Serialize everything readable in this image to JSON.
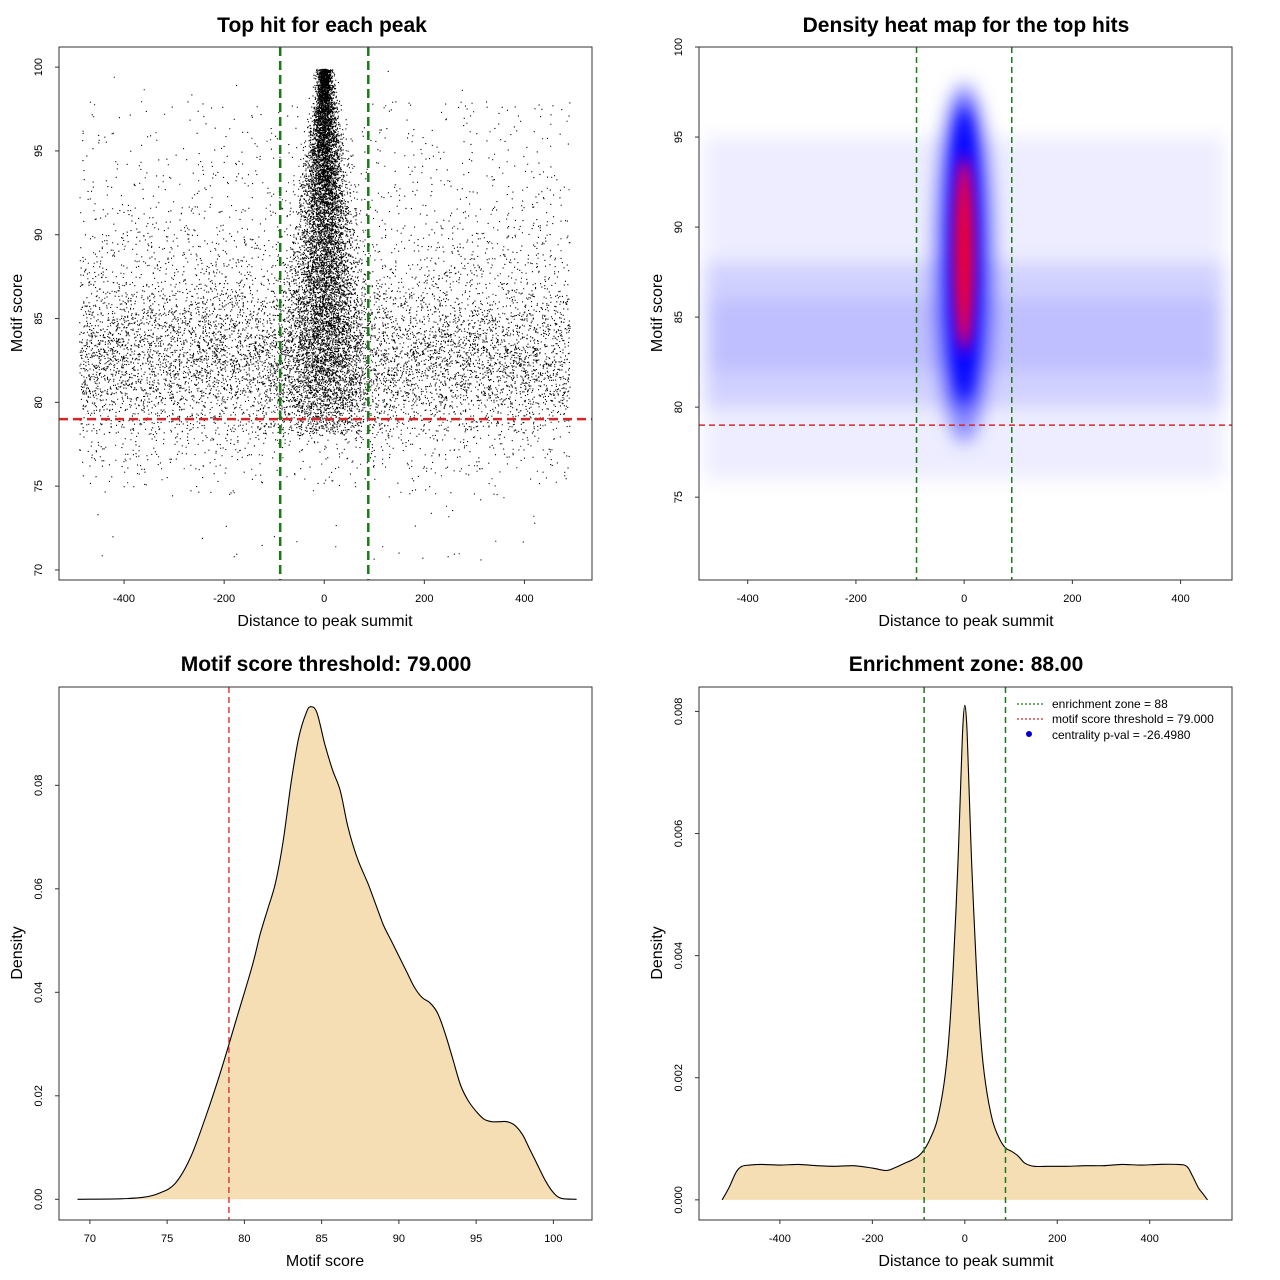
{
  "chart_data": [
    {
      "id": "scatter",
      "type": "scatter",
      "title": "Top hit for each peak",
      "xlabel": "Distance to peak summit",
      "ylabel": "Motif score",
      "xlim": [
        -530,
        535
      ],
      "ylim": [
        69.4,
        101.2
      ],
      "xticks": [
        -400,
        -200,
        0,
        200,
        400
      ],
      "yticks": [
        70,
        75,
        80,
        85,
        90,
        95,
        100
      ],
      "xtick_labels": [
        "-400",
        "-200",
        "0",
        "200",
        "400"
      ],
      "ytick_labels": [
        "70",
        "75",
        "80",
        "85",
        "90",
        "95",
        "100"
      ],
      "vlines": [
        -88,
        88
      ],
      "hline": 79,
      "point_color": "#000000",
      "vline_color": "#1a7a1a",
      "hline_color": "#d62728",
      "description_of_points": "many points; central column near x=0 spanning y 78-100, background band across x -490..490 concentrated around y 80-88"
    },
    {
      "id": "heatmap",
      "type": "heatmap",
      "title": "Density heat map for the top hits",
      "xlabel": "Distance to peak summit",
      "ylabel": "Motif score",
      "xlim": [
        -490,
        495
      ],
      "ylim": [
        70.4,
        100.0
      ],
      "xticks": [
        -400,
        -200,
        0,
        200,
        400
      ],
      "yticks": [
        75,
        80,
        85,
        90,
        95,
        100
      ],
      "xtick_labels": [
        "-400",
        "-200",
        "0",
        "200",
        "400"
      ],
      "ytick_labels": [
        "75",
        "80",
        "85",
        "90",
        "95",
        "100"
      ],
      "vlines": [
        -88,
        88
      ],
      "hline": 79,
      "colors": [
        "#ffffff",
        "#0000ff",
        "#ff0000"
      ],
      "vline_color": "#1a7a1a",
      "hline_color": "#d62728"
    },
    {
      "id": "score_density",
      "type": "area",
      "title": "Motif score threshold: 79.000",
      "xlabel": "Motif score",
      "ylabel": "Density",
      "xlim": [
        68.0,
        102.5
      ],
      "ylim": [
        -0.004,
        0.099
      ],
      "xticks": [
        70,
        75,
        80,
        85,
        90,
        95,
        100
      ],
      "yticks": [
        0.0,
        0.02,
        0.04,
        0.06,
        0.08
      ],
      "xtick_labels": [
        "70",
        "75",
        "80",
        "85",
        "90",
        "95",
        "100"
      ],
      "ytick_labels": [
        "0.00",
        "0.02",
        "0.04",
        "0.06",
        "0.08"
      ],
      "vline": 79,
      "fill": "#f5deb3",
      "line_color": "#000000",
      "vline_color": "#d62728",
      "x": [
        69.2,
        72,
        73.5,
        74.5,
        75.5,
        76.5,
        77.5,
        78.5,
        79.5,
        80.5,
        81,
        81.5,
        82,
        82.5,
        83,
        83.5,
        84,
        84.3,
        84.7,
        85.2,
        85.7,
        86.2,
        86.7,
        87.3,
        88,
        88.5,
        89,
        89.5,
        90,
        90.5,
        91,
        91.5,
        92,
        92.5,
        93,
        93.5,
        94,
        94.5,
        95,
        95.5,
        96,
        96.5,
        97,
        97.5,
        98,
        98.5,
        99,
        99.5,
        100,
        100.5,
        101.5
      ],
      "y": [
        0.0,
        0.0001,
        0.0004,
        0.0012,
        0.003,
        0.008,
        0.016,
        0.025,
        0.035,
        0.045,
        0.051,
        0.056,
        0.061,
        0.069,
        0.08,
        0.089,
        0.094,
        0.0952,
        0.094,
        0.088,
        0.083,
        0.079,
        0.072,
        0.066,
        0.061,
        0.057,
        0.053,
        0.05,
        0.047,
        0.044,
        0.041,
        0.039,
        0.038,
        0.036,
        0.032,
        0.027,
        0.022,
        0.019,
        0.017,
        0.0155,
        0.015,
        0.015,
        0.015,
        0.0143,
        0.0125,
        0.0095,
        0.0065,
        0.0035,
        0.0013,
        0.0002,
        0.0
      ]
    },
    {
      "id": "distance_density",
      "type": "area",
      "title": "Enrichment zone: 88.00",
      "xlabel": "Distance to peak summit",
      "ylabel": "Density",
      "xlim": [
        -575,
        578
      ],
      "ylim": [
        -0.00033,
        0.0084
      ],
      "xticks": [
        -400,
        -200,
        0,
        200,
        400
      ],
      "yticks": [
        0.0,
        0.002,
        0.004,
        0.006,
        0.008
      ],
      "xtick_labels": [
        "-400",
        "-200",
        "0",
        "200",
        "400"
      ],
      "ytick_labels": [
        "0.000",
        "0.002",
        "0.004",
        "0.006",
        "0.008"
      ],
      "vlines": [
        -88,
        88
      ],
      "fill": "#f5deb3",
      "line_color": "#000000",
      "vline_color": "#1a7a1a",
      "x": [
        -525,
        -510,
        -495,
        -482,
        -465,
        -440,
        -400,
        -360,
        -320,
        -280,
        -240,
        -200,
        -170,
        -150,
        -130,
        -115,
        -100,
        -88,
        -75,
        -60,
        -45,
        -35,
        -25,
        -15,
        -8,
        -4,
        0,
        4,
        8,
        15,
        25,
        35,
        45,
        60,
        75,
        88,
        100,
        115,
        130,
        150,
        180,
        220,
        260,
        300,
        340,
        380,
        420,
        460,
        480,
        492,
        505,
        515,
        525
      ],
      "y": [
        0.0,
        0.0002,
        0.00045,
        0.00055,
        0.00057,
        0.00058,
        0.00057,
        0.00058,
        0.00056,
        0.00055,
        0.00056,
        0.00052,
        0.00048,
        0.00053,
        0.0006,
        0.00065,
        0.00072,
        0.00082,
        0.001,
        0.0013,
        0.0019,
        0.0026,
        0.0038,
        0.0055,
        0.007,
        0.0078,
        0.0081,
        0.0078,
        0.007,
        0.0055,
        0.0038,
        0.0026,
        0.0019,
        0.0013,
        0.001,
        0.00085,
        0.0008,
        0.00072,
        0.0006,
        0.00055,
        0.00055,
        0.00055,
        0.00056,
        0.00056,
        0.00058,
        0.00057,
        0.00058,
        0.00058,
        0.00055,
        0.0004,
        0.0002,
        0.0001,
        0.0
      ],
      "legend": {
        "placement": "top-right",
        "entries": [
          {
            "label": "enrichment zone = 88",
            "style": "dotted-line",
            "color": "#1a7a1a"
          },
          {
            "label": "motif score threshold = 79.000",
            "style": "dotted-line",
            "color": "#d62728"
          },
          {
            "label": "centrality p-val = -26.4980",
            "style": "dot",
            "color": "#0000cc"
          }
        ]
      }
    }
  ]
}
